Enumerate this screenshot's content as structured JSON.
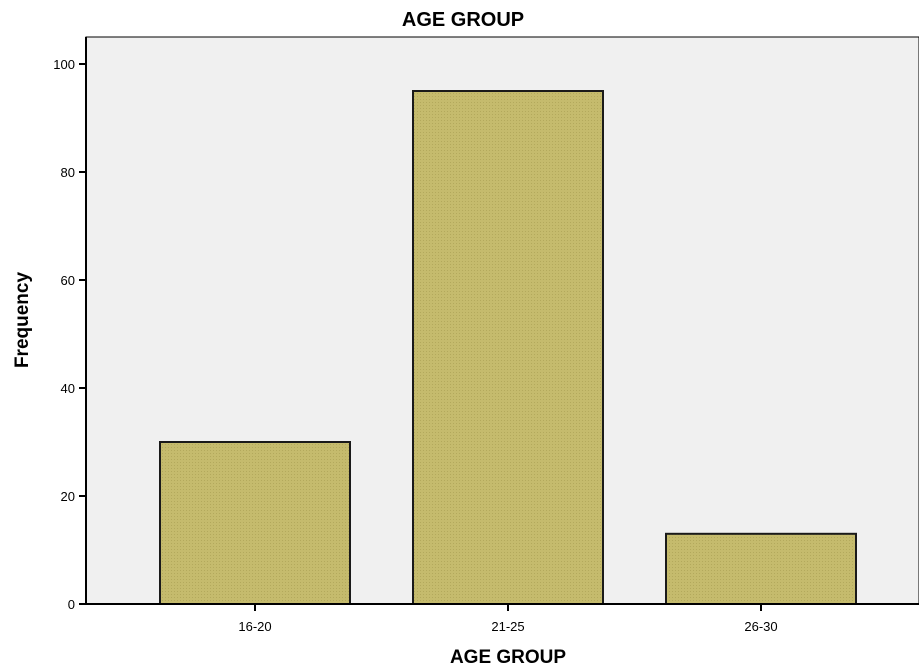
{
  "chart_data": {
    "type": "bar",
    "title": "AGE GROUP",
    "xlabel": "AGE GROUP",
    "ylabel": "Frequency",
    "categories": [
      "16-20",
      "21-25",
      "26-30"
    ],
    "values": [
      30,
      95,
      13
    ],
    "ylim": [
      0,
      105
    ],
    "yticks": [
      0,
      20,
      40,
      60,
      80,
      100
    ],
    "grid": false,
    "legend": "none",
    "colors": {
      "bar_fill": "#c5bb6d",
      "bar_stroke": "#1a1a1a",
      "plot_background": "#f0f0f0",
      "axis": "#000000"
    }
  }
}
